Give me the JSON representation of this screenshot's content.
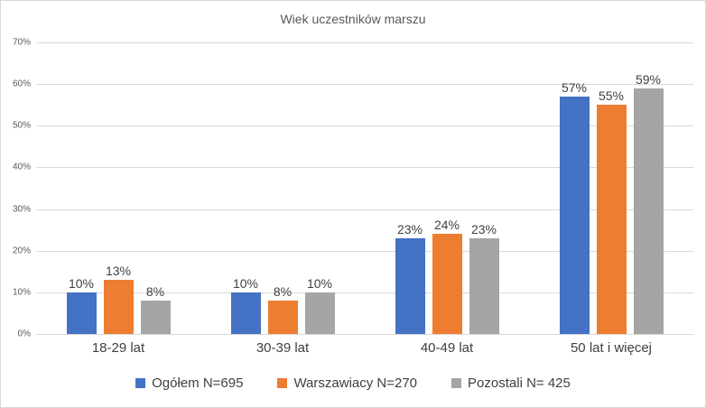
{
  "title": "Wiek uczestników marszu",
  "colors": {
    "blue": "#4472C4",
    "orange": "#ED7D31",
    "gray": "#A5A5A5",
    "gridline": "#D9D9D9",
    "axis_text": "#595959",
    "label_text": "#404040",
    "background": "#FFFFFF"
  },
  "chart_data": {
    "type": "bar",
    "title": "Wiek uczestników marszu",
    "categories": [
      "18-29 lat",
      "30-39 lat",
      "40-49 lat",
      "50 lat i więcej"
    ],
    "series": [
      {
        "name": "Ogółem N=695",
        "color": "#4472C4",
        "values": [
          10,
          10,
          23,
          57
        ]
      },
      {
        "name": "Warszawiacy N=270",
        "color": "#ED7D31",
        "values": [
          13,
          8,
          24,
          55
        ]
      },
      {
        "name": "Pozostali N= 425",
        "color": "#A5A5A5",
        "values": [
          8,
          10,
          23,
          59
        ]
      }
    ],
    "value_suffix": "%",
    "data_labels": true,
    "xlabel": "",
    "ylabel": "",
    "ylim": [
      0,
      70
    ],
    "ytick_step": 10,
    "yticks": [
      "0%",
      "10%",
      "20%",
      "30%",
      "40%",
      "50%",
      "60%",
      "70%"
    ],
    "grid": true,
    "legend_position": "bottom"
  }
}
